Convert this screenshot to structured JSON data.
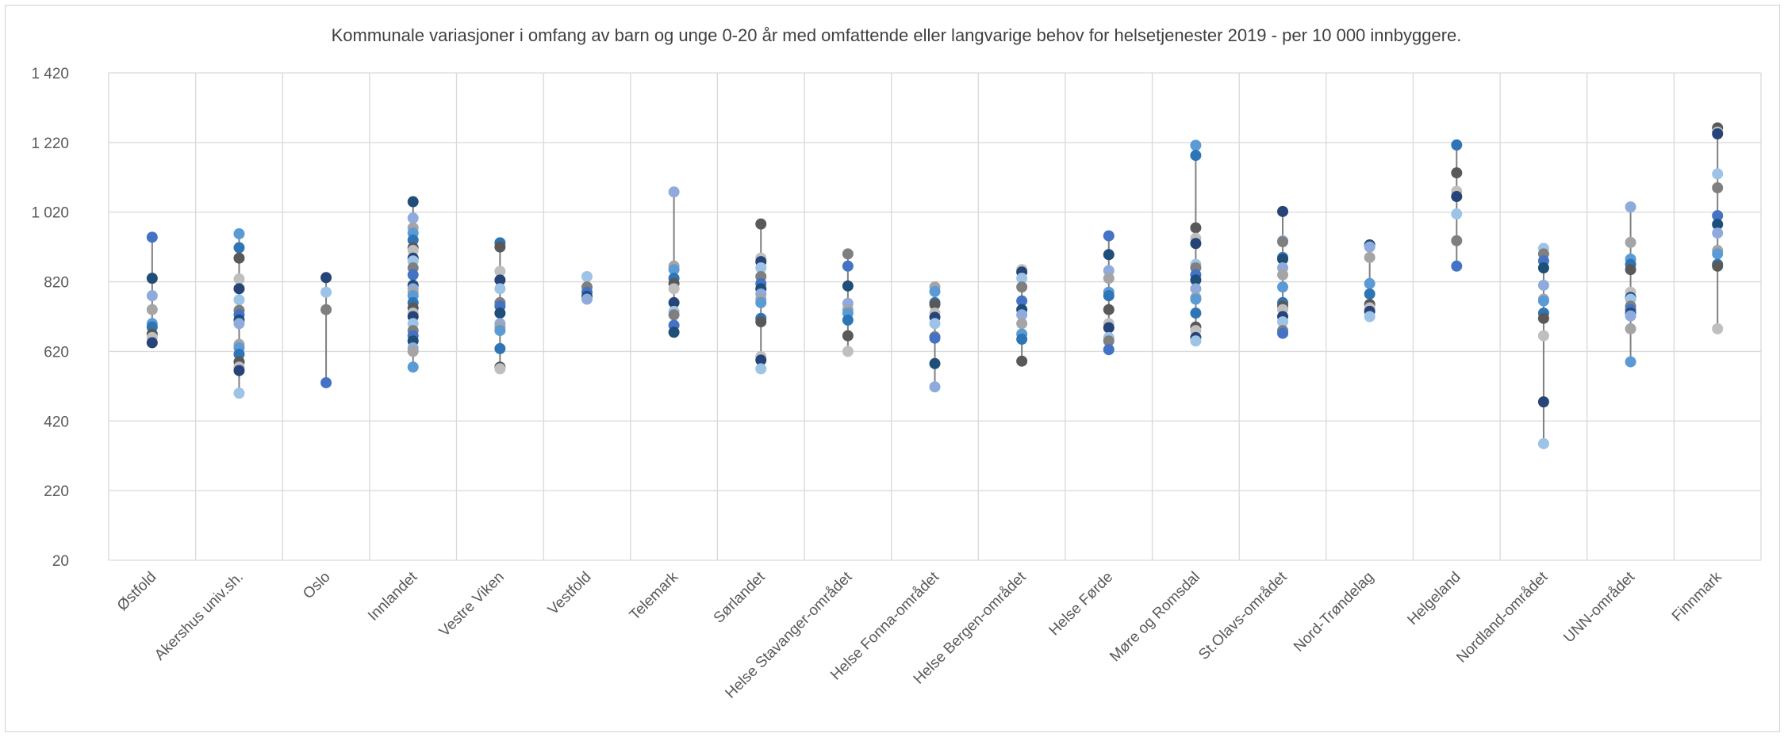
{
  "chart_data": {
    "type": "scatter",
    "title": "Kommunale variasjoner i omfang av barn og unge 0-20 år med omfattende eller langvarige behov for helsetjenester 2019 - per 10 000 innbyggere.",
    "xlabel": "",
    "ylabel": "",
    "ylim": [
      20,
      1420
    ],
    "yticks": [
      20,
      220,
      420,
      620,
      820,
      1020,
      1220,
      1420
    ],
    "ytick_labels": [
      "20",
      "220",
      "420",
      "620",
      "820",
      "1 020",
      "1 220",
      "1 420"
    ],
    "grid": true,
    "legend": "none",
    "range_line_color": "#7f7f7f",
    "point_colors": [
      "#4472c4",
      "#5b9bd5",
      "#264478",
      "#1f4e79",
      "#2e75b6",
      "#9dc3e6",
      "#8faadc",
      "#595959",
      "#7f7f7f",
      "#a5a5a5",
      "#bfbfbf"
    ],
    "categories": [
      "Østfold",
      "Akershus univ.sh.",
      "Oslo",
      "Innlandet",
      "Vestre Viken",
      "Vestfold",
      "Telemark",
      "Sørlandet",
      "Helse Stavanger-området",
      "Helse Fonna-området",
      "Helse Bergen-området",
      "Helse Førde",
      "Møre og Romsdal",
      "St.Olavs-området",
      "Nord-Trøndelag",
      "Helgeland",
      "Nordland-området",
      "UNN-området",
      "Finnmark"
    ],
    "values": [
      [
        948,
        830,
        780,
        740,
        700,
        690,
        670,
        660,
        645
      ],
      [
        958,
        918,
        888,
        828,
        800,
        768,
        738,
        725,
        710,
        700,
        640,
        630,
        612,
        590,
        575,
        565,
        500
      ],
      [
        832,
        790,
        740,
        530
      ],
      [
        1050,
        1003,
        975,
        960,
        940,
        918,
        910,
        888,
        880,
        860,
        840,
        810,
        800,
        790,
        780,
        760,
        745,
        730,
        720,
        700,
        680,
        665,
        650,
        630,
        620,
        575
      ],
      [
        932,
        920,
        850,
        825,
        800,
        760,
        750,
        730,
        700,
        690,
        680,
        628,
        575,
        570
      ],
      [
        835,
        805,
        790,
        778,
        770
      ],
      [
        1078,
        865,
        855,
        830,
        815,
        800,
        760,
        735,
        725,
        695,
        675
      ],
      [
        986,
        888,
        878,
        860,
        835,
        815,
        800,
        785,
        770,
        760,
        715,
        705,
        605,
        595,
        570
      ],
      [
        900,
        865,
        808,
        758,
        740,
        730,
        710,
        665,
        620
      ],
      [
        805,
        792,
        760,
        755,
        730,
        718,
        700,
        662,
        658,
        585,
        518
      ],
      [
        855,
        848,
        830,
        805,
        765,
        740,
        725,
        700,
        670,
        655,
        592
      ],
      [
        952,
        898,
        852,
        830,
        790,
        780,
        740,
        700,
        688,
        660,
        650,
        625
      ],
      [
        1212,
        1183,
        975,
        945,
        930,
        870,
        860,
        840,
        825,
        800,
        775,
        770,
        730,
        690,
        680,
        660,
        650
      ],
      [
        1022,
        938,
        935,
        890,
        885,
        860,
        840,
        805,
        760,
        750,
        740,
        720,
        705,
        680,
        672
      ],
      [
        926,
        920,
        890,
        815,
        785,
        755,
        745,
        735,
        720
      ],
      [
        1213,
        1133,
        1080,
        1065,
        1015,
        938,
        865
      ],
      [
        916,
        900,
        880,
        860,
        810,
        770,
        765,
        730,
        715,
        665,
        475,
        355
      ],
      [
        1035,
        933,
        885,
        870,
        855,
        790,
        775,
        770,
        750,
        740,
        730,
        722,
        685,
        590
      ],
      [
        1262,
        1250,
        1245,
        1130,
        1090,
        1010,
        985,
        960,
        910,
        900,
        870,
        865,
        685
      ]
    ]
  }
}
